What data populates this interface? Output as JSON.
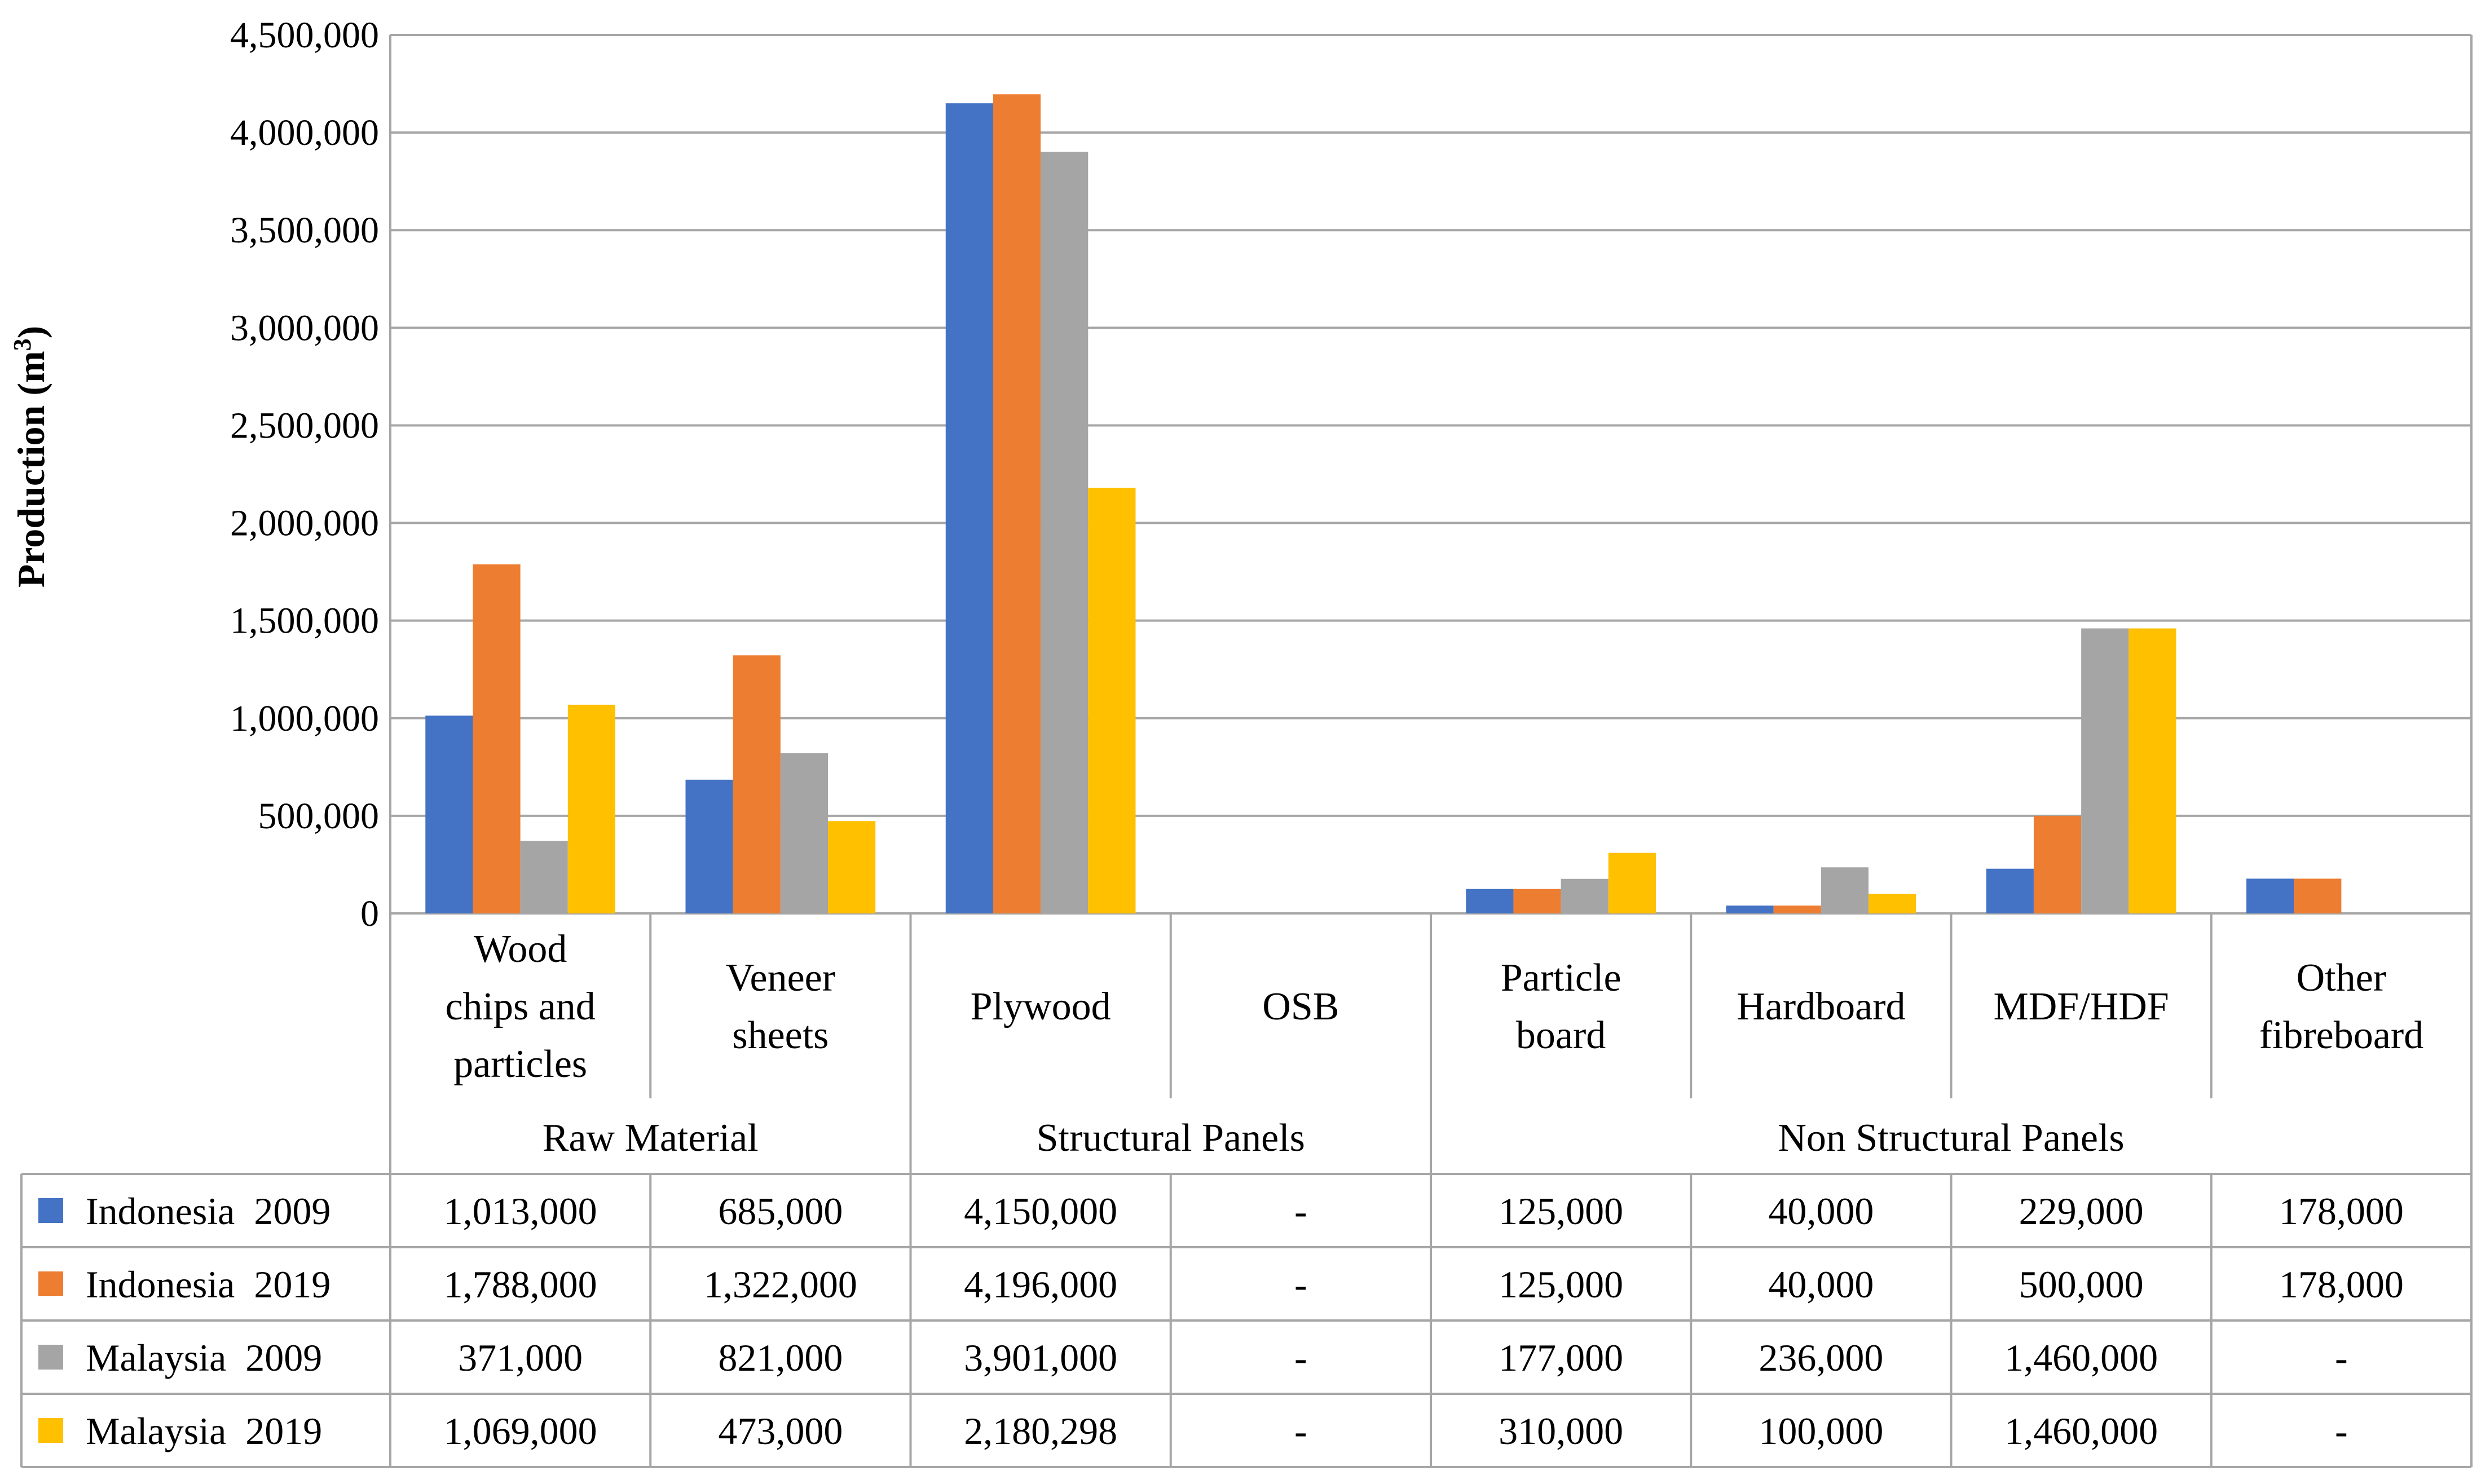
{
  "chart_data": {
    "type": "bar",
    "title": "",
    "xlabel": "",
    "ylabel": "Production (m",
    "ylabel_superscript": "3",
    "ylabel_close": ")",
    "ylim": [
      0,
      4500000
    ],
    "y_ticks": [
      0,
      500000,
      1000000,
      1500000,
      2000000,
      2500000,
      3000000,
      3500000,
      4000000,
      4500000
    ],
    "y_tick_labels": [
      "0",
      "500,000",
      "1,000,000",
      "1,500,000",
      "2,000,000",
      "2,500,000",
      "3,000,000",
      "3,500,000",
      "4,000,000",
      "4,500,000"
    ],
    "grid": true,
    "legend": "table-left",
    "categories": [
      "Wood chips and particles",
      "Veneer sheets",
      "Plywood",
      "OSB",
      "Particle board",
      "Hardboard",
      "MDF/HDF",
      "Other fibreboard"
    ],
    "category_lines": [
      [
        "Wood",
        "chips and",
        "particles"
      ],
      [
        "Veneer",
        "sheets"
      ],
      [
        "Plywood"
      ],
      [
        "OSB"
      ],
      [
        "Particle",
        "board"
      ],
      [
        "Hardboard"
      ],
      [
        "MDF/HDF"
      ],
      [
        "Other",
        "fibreboard"
      ]
    ],
    "groups": [
      {
        "label": "Raw Material",
        "start": 0,
        "end": 1
      },
      {
        "label": "Structural Panels",
        "start": 2,
        "end": 3
      },
      {
        "label": "Non Structural Panels",
        "start": 4,
        "end": 7
      }
    ],
    "series": [
      {
        "name": "Indonesia  2009",
        "color": "#4472c4",
        "values": [
          1013000,
          685000,
          4150000,
          null,
          125000,
          40000,
          229000,
          178000
        ],
        "cells": [
          "1,013,000",
          "685,000",
          "4,150,000",
          "-",
          "125,000",
          "40,000",
          "229,000",
          "178,000"
        ]
      },
      {
        "name": "Indonesia  2019",
        "color": "#ed7d31",
        "values": [
          1788000,
          1322000,
          4196000,
          null,
          125000,
          40000,
          500000,
          178000
        ],
        "cells": [
          "1,788,000",
          "1,322,000",
          "4,196,000",
          "-",
          "125,000",
          "40,000",
          "500,000",
          "178,000"
        ]
      },
      {
        "name": "Malaysia  2009",
        "color": "#a5a5a5",
        "values": [
          371000,
          821000,
          3901000,
          null,
          177000,
          236000,
          1460000,
          null
        ],
        "cells": [
          "371,000",
          "821,000",
          "3,901,000",
          "-",
          "177,000",
          "236,000",
          "1,460,000",
          "-"
        ]
      },
      {
        "name": "Malaysia  2019",
        "color": "#ffc000",
        "values": [
          1069000,
          473000,
          2180298,
          null,
          310000,
          100000,
          1460000,
          null
        ],
        "cells": [
          "1,069,000",
          "473,000",
          "2,180,298",
          "-",
          "310,000",
          "100,000",
          "1,460,000",
          "-"
        ]
      }
    ]
  }
}
